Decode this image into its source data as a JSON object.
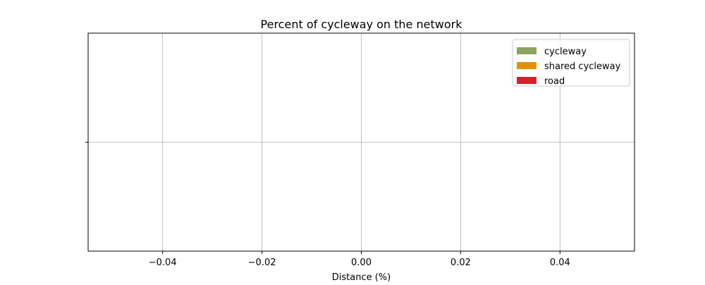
{
  "chart_data": {
    "type": "bar",
    "orientation": "horizontal",
    "stacked": true,
    "title": "Percent of cycleway on the network",
    "xlabel": "Distance (%)",
    "ylabel": "",
    "xlim": [
      -0.055,
      0.055
    ],
    "xticks": [
      -0.04,
      -0.02,
      0.0,
      0.02,
      0.04
    ],
    "xtick_labels": [
      "−0.04",
      "−0.02",
      "0.00",
      "0.02",
      "0.04"
    ],
    "yticks": [
      0
    ],
    "ytick_labels": [
      ""
    ],
    "grid": true,
    "legend_position": "top-right",
    "categories": [
      ""
    ],
    "series": [
      {
        "name": "cycleway",
        "color": "#8da35f",
        "values": [
          0
        ]
      },
      {
        "name": "shared cycleway",
        "color": "#e29104",
        "values": [
          0
        ]
      },
      {
        "name": "road",
        "color": "#d1242a",
        "values": [
          0
        ]
      }
    ]
  }
}
